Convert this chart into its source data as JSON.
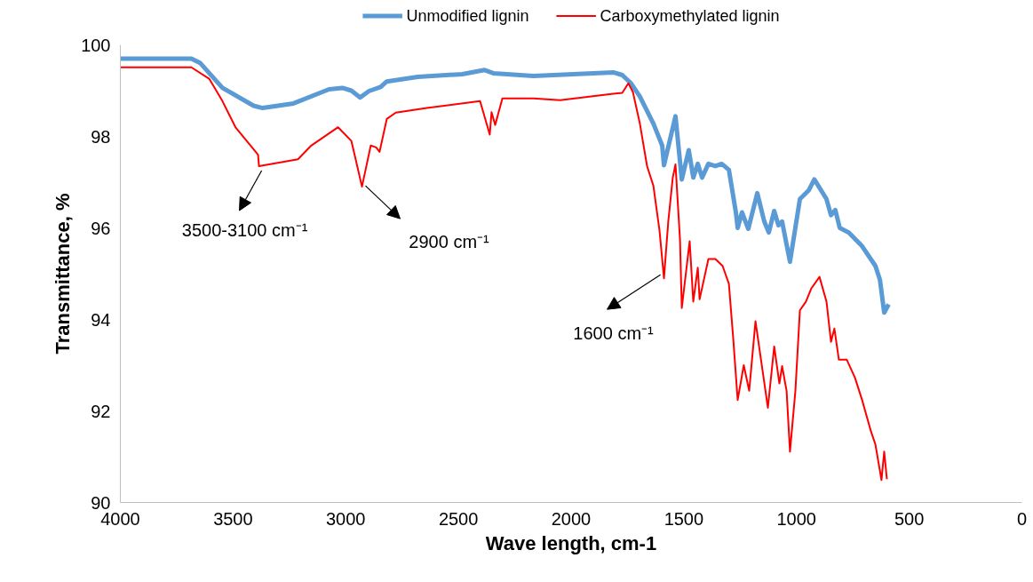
{
  "chart_data": {
    "type": "line",
    "xlabel": "Wave length, cm-1",
    "ylabel": "Transmittance, %",
    "xlim": [
      4000,
      0
    ],
    "ylim": [
      90,
      100
    ],
    "xticks": [
      4000,
      3500,
      3000,
      2500,
      2000,
      1500,
      1000,
      500,
      0
    ],
    "yticks": [
      90,
      92,
      94,
      96,
      98,
      100
    ],
    "grid": false,
    "legend": "top",
    "series": [
      {
        "name": "Unmodified lignin",
        "color": "#5b9bd5",
        "x": [
          4000,
          3901,
          3685,
          3645,
          3547,
          3409,
          3369,
          3232,
          3074,
          3015,
          2975,
          2936,
          2897,
          2845,
          2818,
          2680,
          2483,
          2384,
          2345,
          2167,
          1813,
          1773,
          1734,
          1695,
          1635,
          1596,
          1588,
          1537,
          1509,
          1478,
          1458,
          1438,
          1419,
          1391,
          1360,
          1332,
          1300,
          1269,
          1261,
          1242,
          1214,
          1174,
          1143,
          1123,
          1099,
          1080,
          1064,
          1029,
          985,
          946,
          921,
          867,
          847,
          828,
          808,
          768,
          709,
          650,
          630,
          611,
          591
        ],
        "values": [
          99.7,
          99.7,
          99.7,
          99.6,
          99.06,
          98.67,
          98.62,
          98.72,
          99.03,
          99.06,
          99.0,
          98.85,
          98.99,
          99.08,
          99.2,
          99.3,
          99.36,
          99.45,
          99.38,
          99.32,
          99.4,
          99.34,
          99.16,
          98.87,
          98.28,
          97.8,
          97.37,
          98.44,
          97.06,
          97.7,
          97.1,
          97.4,
          97.1,
          97.4,
          97.35,
          97.4,
          97.27,
          96.34,
          96.0,
          96.34,
          95.98,
          96.76,
          96.14,
          95.9,
          96.37,
          96.06,
          96.14,
          95.26,
          96.63,
          96.82,
          97.06,
          96.63,
          96.28,
          96.39,
          96.0,
          95.9,
          95.6,
          95.17,
          94.87,
          94.15,
          94.33
        ]
      },
      {
        "name": "Carboxymethylated lignin",
        "color": "#ff0000",
        "x": [
          4000,
          3685,
          3606,
          3547,
          3488,
          3389,
          3385,
          3212,
          3153,
          3034,
          2975,
          2956,
          2928,
          2889,
          2865,
          2850,
          2818,
          2778,
          2640,
          2404,
          2361,
          2353,
          2337,
          2305,
          2167,
          2049,
          1813,
          1773,
          1746,
          1726,
          1695,
          1663,
          1635,
          1608,
          1588,
          1569,
          1549,
          1537,
          1517,
          1509,
          1474,
          1458,
          1438,
          1430,
          1391,
          1360,
          1328,
          1300,
          1281,
          1261,
          1234,
          1210,
          1182,
          1127,
          1099,
          1076,
          1064,
          1044,
          1029,
          1005,
          985,
          958,
          934,
          898,
          867,
          847,
          832,
          812,
          777,
          741,
          709,
          670,
          650,
          623,
          611,
          599
        ],
        "values": [
          99.51,
          99.51,
          99.26,
          98.77,
          98.19,
          97.6,
          97.35,
          97.5,
          97.8,
          98.2,
          97.9,
          97.5,
          96.9,
          97.8,
          97.76,
          97.66,
          98.38,
          98.52,
          98.62,
          98.77,
          98.04,
          98.53,
          98.25,
          98.83,
          98.83,
          98.79,
          98.93,
          98.95,
          99.16,
          98.97,
          98.28,
          97.35,
          96.92,
          95.95,
          94.9,
          96.14,
          97.1,
          97.39,
          95.75,
          94.25,
          95.71,
          94.39,
          95.13,
          94.44,
          95.32,
          95.32,
          95.17,
          94.78,
          93.6,
          92.24,
          93.0,
          92.44,
          93.96,
          92.07,
          93.41,
          92.6,
          92.98,
          92.44,
          91.11,
          92.44,
          94.2,
          94.39,
          94.68,
          94.93,
          94.39,
          93.51,
          93.8,
          93.12,
          93.12,
          92.73,
          92.24,
          91.56,
          91.27,
          90.49,
          91.11,
          90.51
        ]
      }
    ],
    "annotations": [
      {
        "text": "3500-3100 cm⁻¹",
        "x": 3385,
        "y": 97.35
      },
      {
        "text": "2900 cm⁻¹",
        "x": 2928,
        "y": 96.9
      },
      {
        "text": "1600 cm⁻¹",
        "x": 1588,
        "y": 94.9
      }
    ]
  }
}
